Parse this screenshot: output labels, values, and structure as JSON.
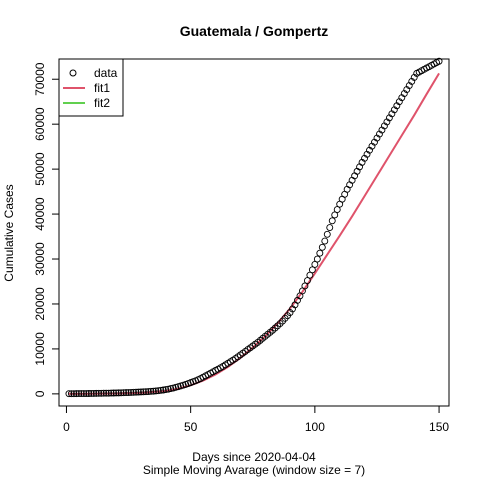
{
  "chart_data": {
    "type": "scatter",
    "title": "Guatemala / Gompertz",
    "xlabel": "Days since 2020-04-04",
    "subtitle": "Simple Moving Avarage (window size = 7)",
    "ylabel": "Cumulative Cases",
    "xlim": [
      -3,
      154
    ],
    "ylim": [
      -2700,
      74500
    ],
    "xticks": [
      0,
      50,
      100,
      150
    ],
    "yticks": [
      0,
      10000,
      20000,
      30000,
      40000,
      50000,
      60000,
      70000
    ],
    "grid": false,
    "legend_position": "top-left",
    "legend": [
      {
        "label": "data",
        "kind": "point",
        "color": "#000000"
      },
      {
        "label": "fit1",
        "kind": "line",
        "color": "#DF536B"
      },
      {
        "label": "fit2",
        "kind": "line",
        "color": "#61D04F"
      }
    ],
    "series": [
      {
        "name": "data",
        "kind": "points",
        "color": "#000000",
        "x": [
          1,
          2,
          3,
          4,
          5,
          6,
          7,
          8,
          9,
          10,
          11,
          12,
          13,
          14,
          15,
          16,
          17,
          18,
          19,
          20,
          21,
          22,
          23,
          24,
          25,
          26,
          27,
          28,
          29,
          30,
          31,
          32,
          33,
          34,
          35,
          36,
          37,
          38,
          39,
          40,
          41,
          42,
          43,
          44,
          45,
          46,
          47,
          48,
          49,
          50,
          51,
          52,
          53,
          54,
          55,
          56,
          57,
          58,
          59,
          60,
          61,
          62,
          63,
          64,
          65,
          66,
          67,
          68,
          69,
          70,
          71,
          72,
          73,
          74,
          75,
          76,
          77,
          78,
          79,
          80,
          81,
          82,
          83,
          84,
          85,
          86,
          87,
          88,
          89,
          90,
          91,
          92,
          93,
          94,
          95,
          96,
          97,
          98,
          99,
          100,
          101,
          102,
          103,
          104,
          105,
          106,
          107,
          108,
          109,
          110,
          111,
          112,
          113,
          114,
          115,
          116,
          117,
          118,
          119,
          120,
          121,
          122,
          123,
          124,
          125,
          126,
          127,
          128,
          129,
          130,
          131,
          132,
          133,
          134,
          135,
          136,
          137,
          138,
          139,
          140,
          141,
          142,
          143,
          144,
          145,
          146,
          147,
          148,
          149,
          150
        ],
        "y": [
          40,
          45,
          50,
          55,
          60,
          65,
          70,
          75,
          80,
          90,
          100,
          110,
          120,
          130,
          140,
          150,
          160,
          175,
          190,
          205,
          220,
          240,
          260,
          280,
          300,
          320,
          345,
          370,
          395,
          420,
          450,
          480,
          520,
          560,
          600,
          650,
          700,
          780,
          860,
          950,
          1050,
          1170,
          1300,
          1450,
          1600,
          1760,
          1930,
          2100,
          2300,
          2500,
          2700,
          2900,
          3150,
          3400,
          3700,
          4000,
          4300,
          4600,
          4900,
          5200,
          5500,
          5800,
          6100,
          6450,
          6800,
          7150,
          7500,
          7850,
          8250,
          8650,
          9050,
          9450,
          9850,
          10250,
          10650,
          11050,
          11450,
          11900,
          12350,
          12800,
          13250,
          13700,
          14150,
          14650,
          15150,
          15650,
          16200,
          16800,
          17400,
          18100,
          18900,
          19800,
          20800,
          21800,
          22900,
          24000,
          25200,
          26400,
          27600,
          28800,
          30000,
          31300,
          32600,
          34000,
          35500,
          37000,
          38500,
          39800,
          41000,
          42200,
          43300,
          44400,
          45500,
          46500,
          47500,
          48500,
          49500,
          50500,
          51500,
          52400,
          53300,
          54200,
          55100,
          56000,
          56900,
          57800,
          58700,
          59600,
          60500,
          61400,
          62300,
          63200,
          64100,
          65000,
          65900,
          66800,
          67700,
          68600,
          69500,
          70400,
          71300,
          71600,
          71900,
          72200,
          72500,
          72800,
          73100,
          73400,
          73700,
          74000
        ]
      },
      {
        "name": "fit1",
        "kind": "line",
        "color": "#DF536B",
        "x": [
          1,
          10,
          20,
          30,
          40,
          45,
          50,
          55,
          60,
          65,
          70,
          75,
          80,
          85,
          90,
          95,
          100,
          105,
          110,
          115,
          120,
          125,
          130,
          135,
          140,
          145,
          150
        ],
        "y": [
          0,
          20,
          80,
          230,
          650,
          1150,
          1900,
          2950,
          4300,
          6000,
          8000,
          10300,
          12800,
          15700,
          19000,
          22700,
          26800,
          31000,
          35200,
          39500,
          44000,
          48500,
          53000,
          57500,
          62000,
          66700,
          71300
        ]
      },
      {
        "name": "fit2",
        "kind": "line",
        "color": "#61D04F",
        "x": [],
        "y": []
      }
    ]
  }
}
